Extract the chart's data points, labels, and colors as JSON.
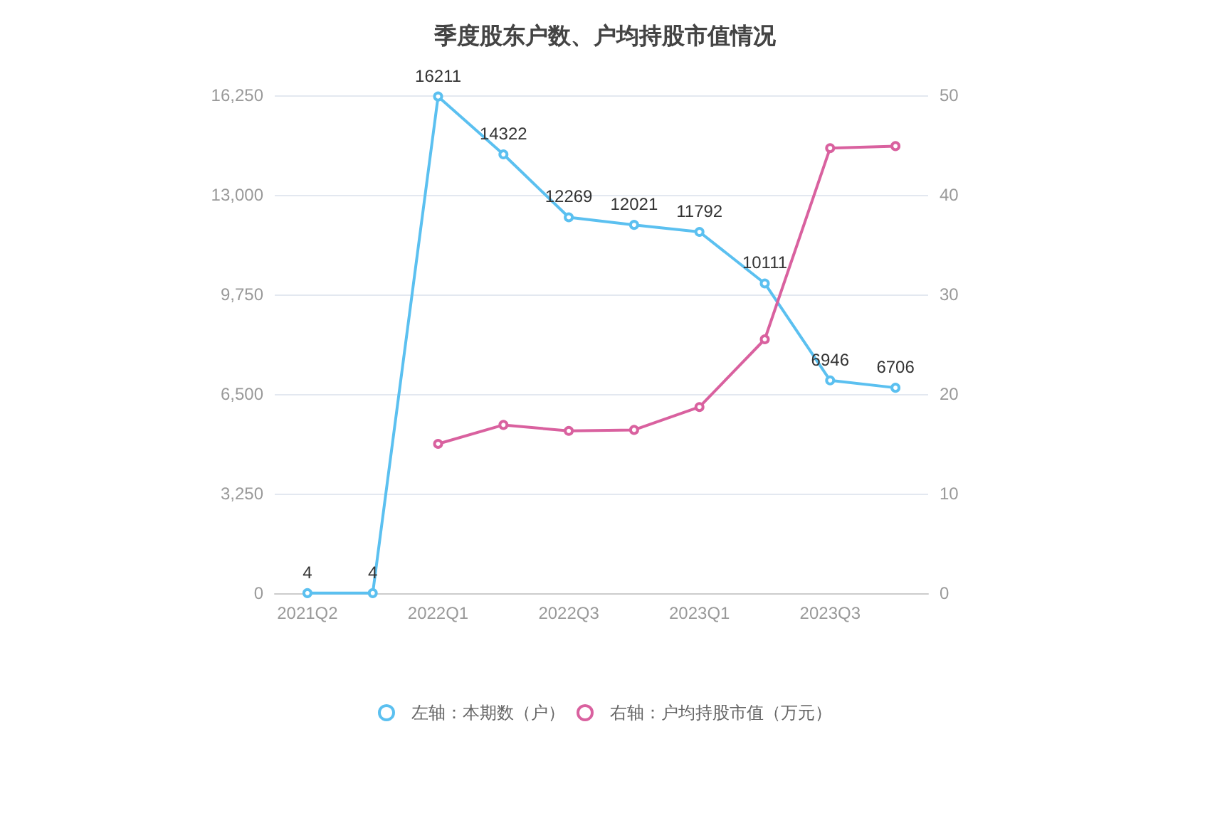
{
  "chart_data": {
    "type": "line",
    "title": "季度股东户数、户均持股市值情况",
    "categories": [
      "2021Q2",
      null,
      "2022Q1",
      null,
      "2022Q3",
      null,
      "2023Q1",
      null,
      "2023Q3",
      null
    ],
    "series": [
      {
        "name": "左轴：本期数（户）",
        "color": "#5bc0f0",
        "values": [
          4,
          4,
          16211,
          14322,
          12269,
          12021,
          11792,
          10111,
          6946,
          6706
        ],
        "value_labels": [
          "4",
          "4",
          "16211",
          "14322",
          "12269",
          "12021",
          "11792",
          "10111",
          "6946",
          "6706"
        ]
      },
      {
        "name": "右轴：户均持股市值（万元）",
        "color": "#d9619f",
        "axis": "y2",
        "values": [
          null,
          null,
          15.0,
          16.9,
          16.3,
          16.4,
          18.7,
          25.5,
          44.7,
          44.9
        ]
      }
    ],
    "ylim": [
      0,
      16250
    ],
    "yticks": [
      0,
      {
        "value": 3250,
        "label": "3,250"
      },
      {
        "value": 6500,
        "label": "6,500"
      },
      {
        "value": 9750,
        "label": "9,750"
      },
      {
        "value": 13000,
        "label": "13,000"
      },
      {
        "value": 16250,
        "label": "16,250"
      }
    ],
    "y2lim": [
      0,
      50
    ],
    "y2ticks": [
      0,
      10,
      20,
      30,
      40,
      50
    ],
    "grid": "y",
    "legend": "bottom",
    "marker": "circle",
    "line_style": "solid"
  }
}
